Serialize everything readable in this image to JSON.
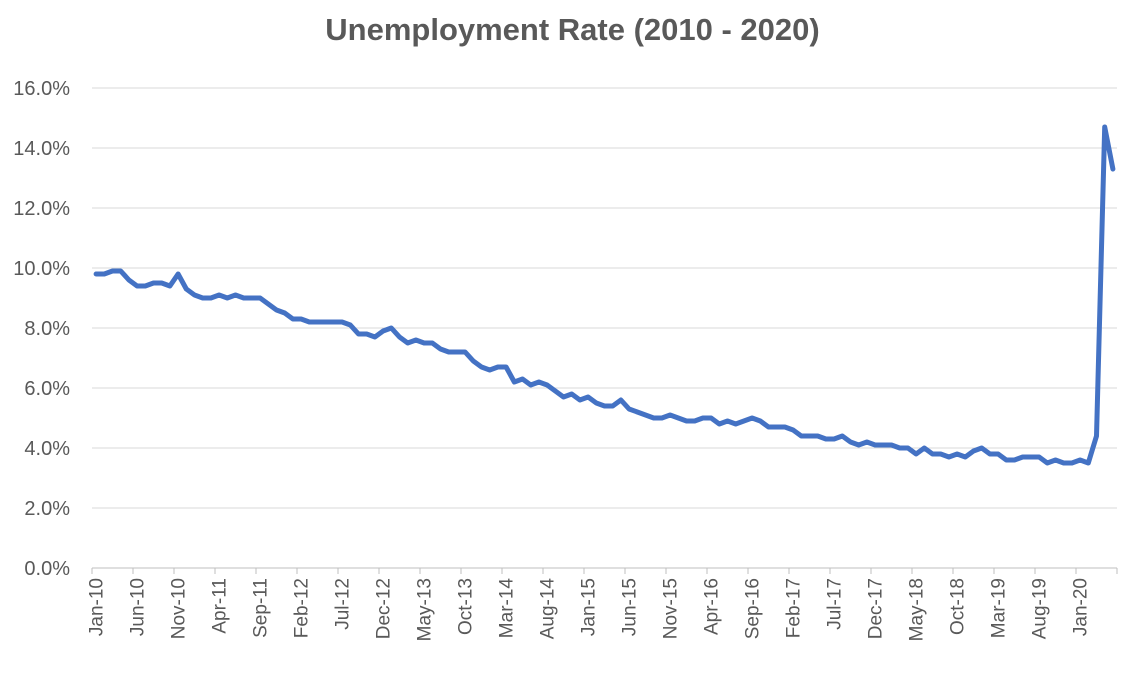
{
  "chart_data": {
    "type": "line",
    "title": "Unemployment Rate (2010 - 2020)",
    "xlabel": "",
    "ylabel": "",
    "ylim": [
      0,
      16
    ],
    "y_ticks": [
      "0.0%",
      "2.0%",
      "4.0%",
      "6.0%",
      "8.0%",
      "10.0%",
      "12.0%",
      "14.0%",
      "16.0%"
    ],
    "grid": true,
    "legend": "none",
    "x_tick_labels": [
      "Jan-10",
      "Jun-10",
      "Nov-10",
      "Apr-11",
      "Sep-11",
      "Feb-12",
      "Jul-12",
      "Dec-12",
      "May-13",
      "Oct-13",
      "Mar-14",
      "Aug-14",
      "Jan-15",
      "Jun-15",
      "Nov-15",
      "Apr-16",
      "Sep-16",
      "Feb-17",
      "Jul-17",
      "Dec-17",
      "May-18",
      "Oct-18",
      "Mar-19",
      "Aug-19",
      "Jan-20"
    ],
    "x_tick_every_months": 5,
    "series": [
      {
        "color": "#4472c4",
        "x_start": "Jan-10",
        "x_end": "May-20",
        "values": [
          9.8,
          9.8,
          9.9,
          9.9,
          9.6,
          9.4,
          9.4,
          9.5,
          9.5,
          9.4,
          9.8,
          9.3,
          9.1,
          9.0,
          9.0,
          9.1,
          9.0,
          9.1,
          9.0,
          9.0,
          9.0,
          8.8,
          8.6,
          8.5,
          8.3,
          8.3,
          8.2,
          8.2,
          8.2,
          8.2,
          8.2,
          8.1,
          7.8,
          7.8,
          7.7,
          7.9,
          8.0,
          7.7,
          7.5,
          7.6,
          7.5,
          7.5,
          7.3,
          7.2,
          7.2,
          7.2,
          6.9,
          6.7,
          6.6,
          6.7,
          6.7,
          6.2,
          6.3,
          6.1,
          6.2,
          6.1,
          5.9,
          5.7,
          5.8,
          5.6,
          5.7,
          5.5,
          5.4,
          5.4,
          5.6,
          5.3,
          5.2,
          5.1,
          5.0,
          5.0,
          5.1,
          5.0,
          4.9,
          4.9,
          5.0,
          5.0,
          4.8,
          4.9,
          4.8,
          4.9,
          5.0,
          4.9,
          4.7,
          4.7,
          4.7,
          4.6,
          4.4,
          4.4,
          4.4,
          4.3,
          4.3,
          4.4,
          4.2,
          4.1,
          4.2,
          4.1,
          4.1,
          4.1,
          4.0,
          4.0,
          3.8,
          4.0,
          3.8,
          3.8,
          3.7,
          3.8,
          3.7,
          3.9,
          4.0,
          3.8,
          3.8,
          3.6,
          3.6,
          3.7,
          3.7,
          3.7,
          3.5,
          3.6,
          3.5,
          3.5,
          3.6,
          3.5,
          4.4,
          14.7,
          13.3
        ]
      }
    ]
  }
}
